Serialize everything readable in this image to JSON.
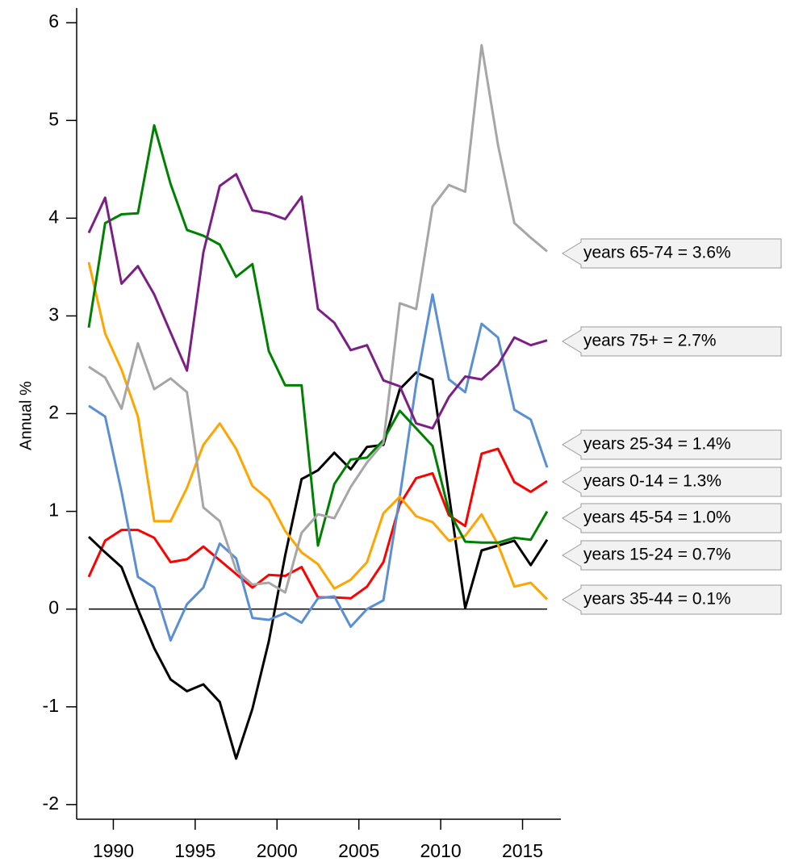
{
  "chart_data": {
    "type": "line",
    "y_label": "Annual %",
    "x": [
      1988.5,
      1989.5,
      1990.5,
      1991.5,
      1992.5,
      1993.5,
      1994.5,
      1995.5,
      1996.5,
      1997.5,
      1998.5,
      1999.5,
      2000.5,
      2001.5,
      2002.5,
      2003.5,
      2004.5,
      2005.5,
      2006.5,
      2007.5,
      2008.5,
      2009.5,
      2010.5,
      2011.5,
      2012.5,
      2013.5,
      2014.5,
      2015.5,
      2016.5
    ],
    "xlim": [
      1987.76,
      2017.34
    ],
    "xticks": [
      1990,
      1995,
      2000,
      2005,
      2010,
      2015
    ],
    "ylim": [
      -2.15,
      6.15
    ],
    "yticks": [
      -2,
      -1,
      0,
      1,
      2,
      3,
      4,
      5,
      6
    ],
    "series": [
      {
        "name": "years 0-14 = 1.3%",
        "color": "#ff0000",
        "values": [
          0.33,
          0.7,
          0.81,
          0.81,
          0.73,
          0.48,
          0.51,
          0.64,
          0.5,
          0.36,
          0.22,
          0.35,
          0.34,
          0.43,
          0.12,
          0.12,
          0.11,
          0.23,
          0.48,
          1.07,
          1.34,
          1.39,
          0.96,
          0.85,
          1.59,
          1.64,
          1.3,
          1.2,
          1.31
        ]
      },
      {
        "name": "years 15-24 = 0.7%",
        "color": "#000000",
        "values": [
          0.74,
          0.58,
          0.43,
          0.0,
          -0.4,
          -0.72,
          -0.84,
          -0.77,
          -0.95,
          -1.53,
          -1.02,
          -0.33,
          0.55,
          1.33,
          1.42,
          1.6,
          1.43,
          1.66,
          1.68,
          2.25,
          2.42,
          2.35,
          1.17,
          0.01,
          0.6,
          0.65,
          0.7,
          0.45,
          0.71
        ]
      },
      {
        "name": "years 25-34 = 1.4%",
        "color": "#5b8fd3",
        "values": [
          2.08,
          1.97,
          1.2,
          0.33,
          0.22,
          -0.32,
          0.05,
          0.22,
          0.67,
          0.52,
          -0.09,
          -0.11,
          -0.04,
          -0.14,
          0.11,
          0.13,
          -0.18,
          0.0,
          0.09,
          1.15,
          2.3,
          3.22,
          2.35,
          2.22,
          2.92,
          2.78,
          2.04,
          1.94,
          1.45
        ]
      },
      {
        "name": "years 35-44 = 0.1%",
        "color": "#ffa500",
        "values": [
          3.55,
          2.82,
          2.45,
          1.97,
          0.9,
          0.9,
          1.24,
          1.68,
          1.9,
          1.64,
          1.26,
          1.12,
          0.8,
          0.58,
          0.46,
          0.21,
          0.3,
          0.48,
          0.98,
          1.15,
          0.95,
          0.89,
          0.7,
          0.75,
          0.97,
          0.66,
          0.23,
          0.27,
          0.1
        ]
      },
      {
        "name": "years 45-54 = 1.0%",
        "color": "#008000",
        "values": [
          2.88,
          3.95,
          4.04,
          4.05,
          4.95,
          4.35,
          3.88,
          3.82,
          3.73,
          3.4,
          3.53,
          2.64,
          2.29,
          2.29,
          0.65,
          1.28,
          1.53,
          1.55,
          1.73,
          2.03,
          1.85,
          1.67,
          1.0,
          0.69,
          0.68,
          0.68,
          0.73,
          0.71,
          1.0
        ]
      },
      {
        "name": "years 65-74 = 3.6%",
        "color": "#a6a6a6",
        "values": [
          2.48,
          2.37,
          2.05,
          2.72,
          2.25,
          2.36,
          2.22,
          1.04,
          0.9,
          0.4,
          0.25,
          0.27,
          0.17,
          0.78,
          0.97,
          0.93,
          1.25,
          1.5,
          1.7,
          3.13,
          3.07,
          4.12,
          4.34,
          4.27,
          5.77,
          4.75,
          3.95,
          3.8,
          3.66
        ]
      },
      {
        "name": "years 75+ = 2.7%",
        "color": "#7b1f85",
        "values": [
          3.85,
          4.21,
          3.33,
          3.51,
          3.22,
          2.83,
          2.44,
          3.65,
          4.33,
          4.45,
          4.08,
          4.05,
          3.99,
          4.22,
          3.07,
          2.93,
          2.65,
          2.7,
          2.34,
          2.28,
          1.9,
          1.85,
          2.17,
          2.38,
          2.35,
          2.5,
          2.78,
          2.7,
          2.75
        ]
      }
    ]
  }
}
